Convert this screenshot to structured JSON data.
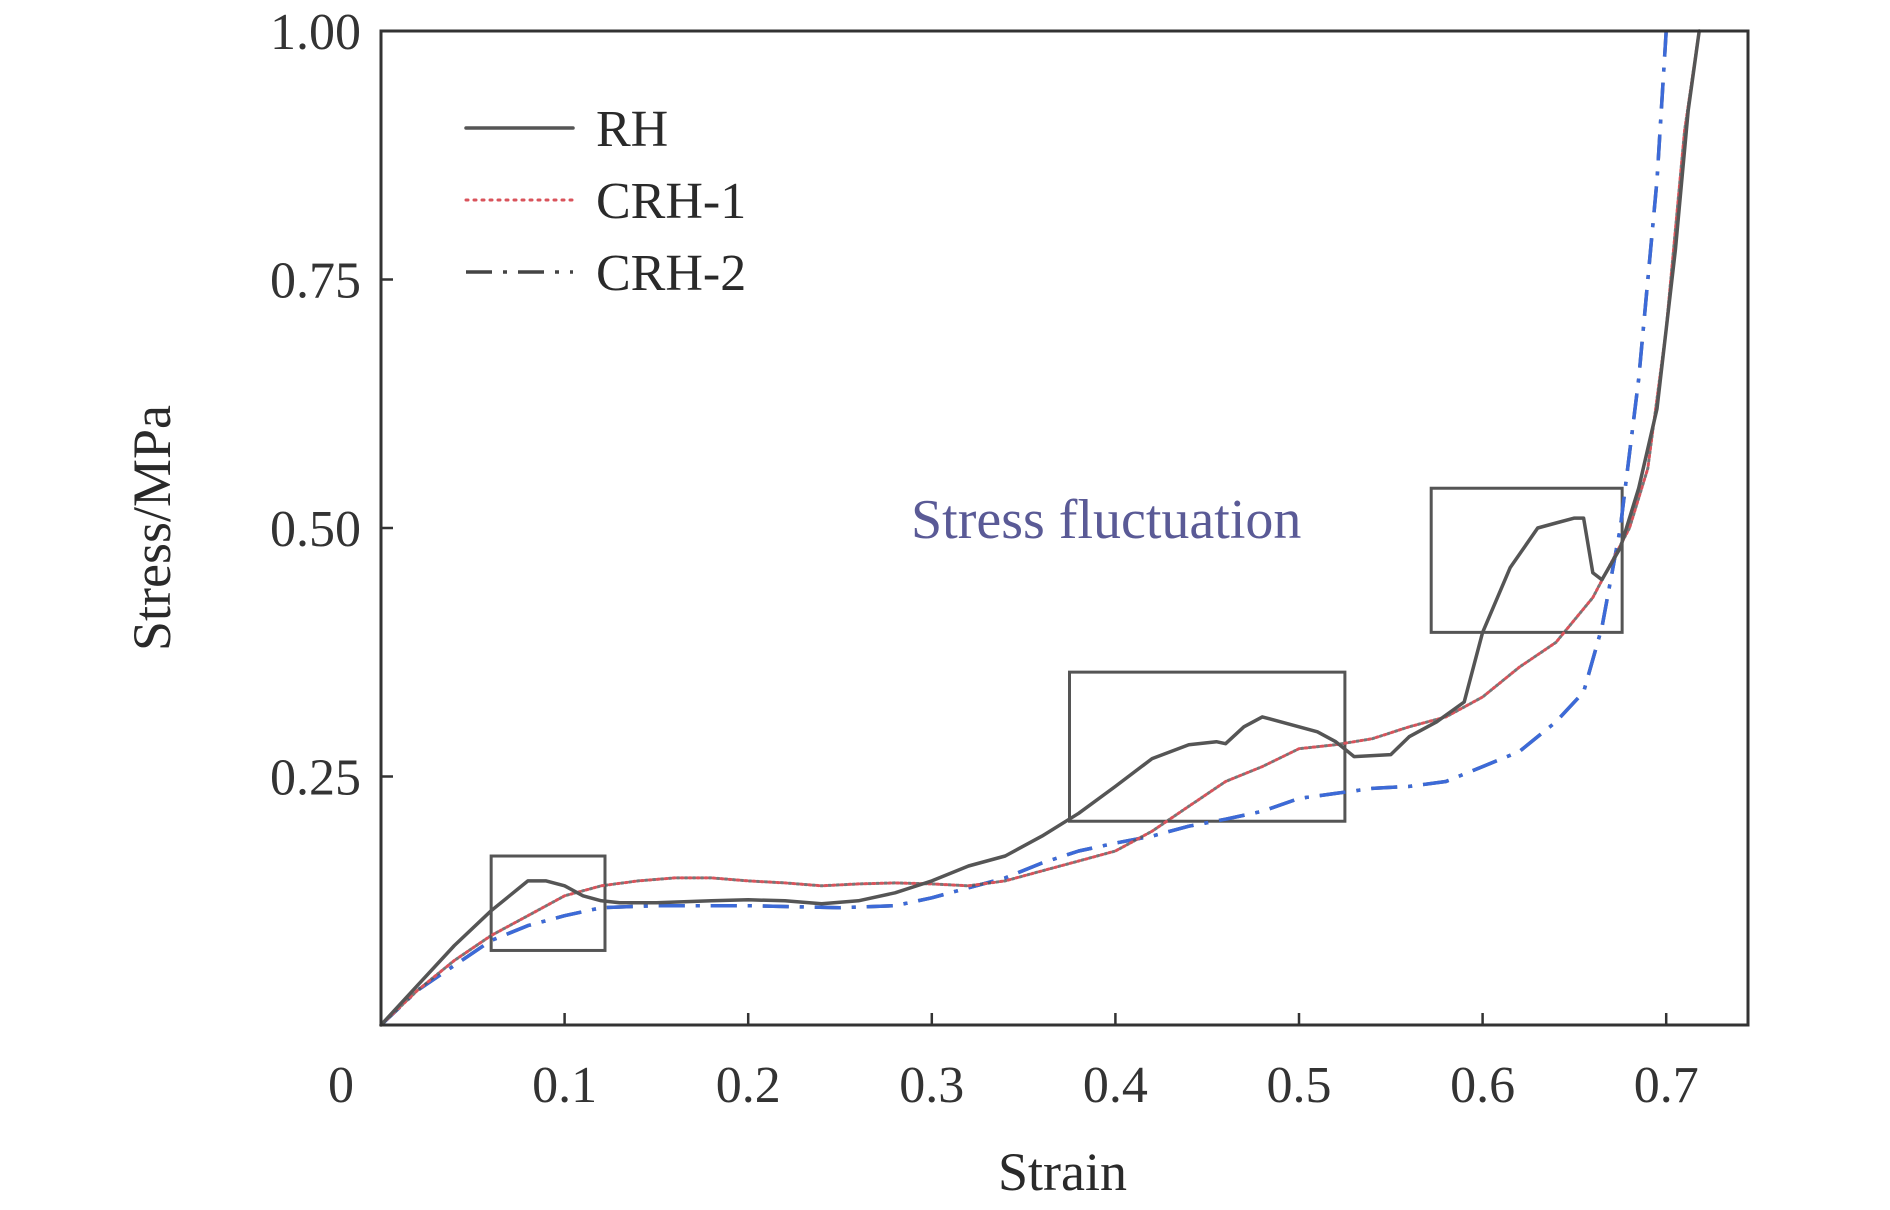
{
  "chart_data": {
    "type": "line",
    "xlabel": "Strain",
    "ylabel": "Stress/MPa",
    "xlim": [
      0,
      0.75
    ],
    "ylim": [
      0,
      1.0
    ],
    "x_ticks": [
      0,
      0.1,
      0.2,
      0.3,
      0.4,
      0.5,
      0.6,
      0.7
    ],
    "x_tick_labels": [
      "0",
      "0.1",
      "0.2",
      "0.3",
      "0.4",
      "0.5",
      "0.6",
      "0.7"
    ],
    "y_ticks": [
      0.25,
      0.5,
      0.75,
      1.0
    ],
    "y_tick_labels": [
      "0.25",
      "0.50",
      "0.75",
      "1.00"
    ],
    "grid": false,
    "legend_position": "top-left",
    "annotation": {
      "text": "Stress fluctuation",
      "color": "#5a5a96"
    },
    "highlight_boxes": [
      {
        "x": [
          0.06,
          0.122
        ],
        "y": [
          0.075,
          0.17
        ]
      },
      {
        "x": [
          0.375,
          0.525
        ],
        "y": [
          0.205,
          0.355
        ]
      },
      {
        "x": [
          0.572,
          0.676
        ],
        "y": [
          0.395,
          0.54
        ]
      }
    ],
    "series": [
      {
        "name": "RH",
        "style": "solid",
        "color": "#555555",
        "points": [
          [
            0.0,
            0.0
          ],
          [
            0.02,
            0.04
          ],
          [
            0.04,
            0.08
          ],
          [
            0.06,
            0.115
          ],
          [
            0.07,
            0.13
          ],
          [
            0.08,
            0.145
          ],
          [
            0.09,
            0.145
          ],
          [
            0.1,
            0.14
          ],
          [
            0.11,
            0.13
          ],
          [
            0.12,
            0.125
          ],
          [
            0.13,
            0.123
          ],
          [
            0.15,
            0.123
          ],
          [
            0.18,
            0.125
          ],
          [
            0.2,
            0.126
          ],
          [
            0.22,
            0.125
          ],
          [
            0.24,
            0.122
          ],
          [
            0.26,
            0.125
          ],
          [
            0.28,
            0.133
          ],
          [
            0.3,
            0.145
          ],
          [
            0.32,
            0.16
          ],
          [
            0.34,
            0.17
          ],
          [
            0.36,
            0.19
          ],
          [
            0.38,
            0.213
          ],
          [
            0.4,
            0.24
          ],
          [
            0.42,
            0.268
          ],
          [
            0.44,
            0.282
          ],
          [
            0.455,
            0.285
          ],
          [
            0.46,
            0.283
          ],
          [
            0.47,
            0.3
          ],
          [
            0.48,
            0.31
          ],
          [
            0.49,
            0.305
          ],
          [
            0.5,
            0.3
          ],
          [
            0.51,
            0.295
          ],
          [
            0.52,
            0.285
          ],
          [
            0.53,
            0.27
          ],
          [
            0.55,
            0.272
          ],
          [
            0.56,
            0.29
          ],
          [
            0.575,
            0.305
          ],
          [
            0.59,
            0.325
          ],
          [
            0.6,
            0.395
          ],
          [
            0.615,
            0.46
          ],
          [
            0.63,
            0.5
          ],
          [
            0.64,
            0.505
          ],
          [
            0.65,
            0.51
          ],
          [
            0.655,
            0.51
          ],
          [
            0.66,
            0.455
          ],
          [
            0.665,
            0.448
          ],
          [
            0.675,
            0.48
          ],
          [
            0.685,
            0.54
          ],
          [
            0.695,
            0.62
          ],
          [
            0.705,
            0.78
          ],
          [
            0.712,
            0.92
          ],
          [
            0.718,
            1.0
          ]
        ]
      },
      {
        "name": "CRH-1",
        "style": "dotted",
        "color": "#d9535b",
        "points": [
          [
            0.0,
            0.0
          ],
          [
            0.02,
            0.035
          ],
          [
            0.04,
            0.065
          ],
          [
            0.06,
            0.09
          ],
          [
            0.08,
            0.11
          ],
          [
            0.1,
            0.13
          ],
          [
            0.12,
            0.14
          ],
          [
            0.14,
            0.145
          ],
          [
            0.16,
            0.148
          ],
          [
            0.18,
            0.148
          ],
          [
            0.2,
            0.145
          ],
          [
            0.22,
            0.143
          ],
          [
            0.24,
            0.14
          ],
          [
            0.26,
            0.142
          ],
          [
            0.28,
            0.143
          ],
          [
            0.3,
            0.142
          ],
          [
            0.32,
            0.14
          ],
          [
            0.34,
            0.145
          ],
          [
            0.36,
            0.155
          ],
          [
            0.38,
            0.165
          ],
          [
            0.4,
            0.175
          ],
          [
            0.42,
            0.195
          ],
          [
            0.44,
            0.22
          ],
          [
            0.46,
            0.245
          ],
          [
            0.48,
            0.26
          ],
          [
            0.5,
            0.278
          ],
          [
            0.52,
            0.282
          ],
          [
            0.54,
            0.288
          ],
          [
            0.56,
            0.3
          ],
          [
            0.58,
            0.31
          ],
          [
            0.6,
            0.33
          ],
          [
            0.62,
            0.36
          ],
          [
            0.64,
            0.385
          ],
          [
            0.66,
            0.43
          ],
          [
            0.68,
            0.5
          ],
          [
            0.69,
            0.56
          ],
          [
            0.7,
            0.7
          ],
          [
            0.71,
            0.9
          ],
          [
            0.718,
            1.0
          ]
        ]
      },
      {
        "name": "CRH-2",
        "style": "dashdot",
        "color": "#3c6ad8",
        "points": [
          [
            0.0,
            0.0
          ],
          [
            0.02,
            0.035
          ],
          [
            0.04,
            0.06
          ],
          [
            0.06,
            0.085
          ],
          [
            0.08,
            0.1
          ],
          [
            0.1,
            0.11
          ],
          [
            0.12,
            0.118
          ],
          [
            0.15,
            0.12
          ],
          [
            0.2,
            0.12
          ],
          [
            0.25,
            0.118
          ],
          [
            0.28,
            0.12
          ],
          [
            0.3,
            0.128
          ],
          [
            0.32,
            0.138
          ],
          [
            0.34,
            0.148
          ],
          [
            0.36,
            0.163
          ],
          [
            0.38,
            0.175
          ],
          [
            0.4,
            0.183
          ],
          [
            0.42,
            0.19
          ],
          [
            0.44,
            0.2
          ],
          [
            0.46,
            0.207
          ],
          [
            0.48,
            0.215
          ],
          [
            0.5,
            0.228
          ],
          [
            0.52,
            0.233
          ],
          [
            0.54,
            0.238
          ],
          [
            0.56,
            0.24
          ],
          [
            0.58,
            0.245
          ],
          [
            0.6,
            0.26
          ],
          [
            0.62,
            0.275
          ],
          [
            0.64,
            0.305
          ],
          [
            0.655,
            0.335
          ],
          [
            0.665,
            0.4
          ],
          [
            0.675,
            0.5
          ],
          [
            0.685,
            0.65
          ],
          [
            0.695,
            0.85
          ],
          [
            0.7,
            1.0
          ]
        ]
      }
    ]
  }
}
